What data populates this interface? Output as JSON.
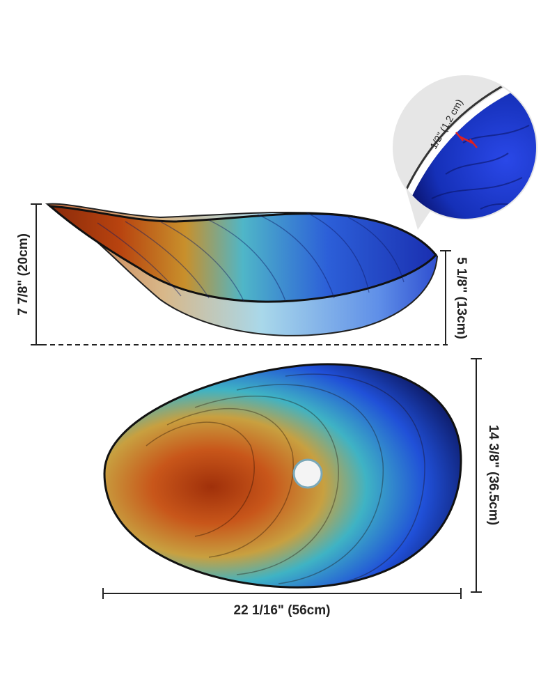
{
  "dimensions": {
    "total_height": "7 7/8\" (20cm)",
    "bowl_depth": "5 1/8\" (13cm)",
    "width": "14 3/8\" (36.5cm)",
    "length": "22 1/16\" (56cm)",
    "rim_thickness": "1/2\" (1.2 cm)"
  },
  "colors": {
    "orange": "#b8430f",
    "gold": "#c8902c",
    "teal": "#3fb3c4",
    "blue": "#1f3fd0",
    "navy": "#0d1a66",
    "line": "#222222",
    "marker": "#e02020"
  }
}
